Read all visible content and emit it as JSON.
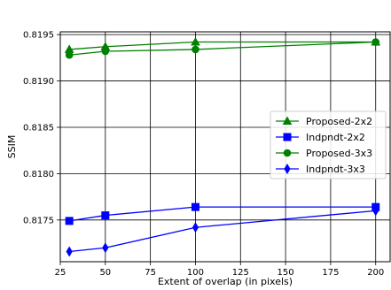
{
  "chart_data": {
    "type": "line",
    "title": "",
    "xlabel": "Extent of overlap (in pixels)",
    "ylabel": "SSIM",
    "xlim": [
      25,
      208
    ],
    "ylim": [
      0.81705,
      0.81953
    ],
    "xticks": [
      25,
      50,
      75,
      100,
      125,
      150,
      175,
      200
    ],
    "yticks": [
      0.8175,
      0.818,
      0.8185,
      0.819,
      0.8195
    ],
    "ytick_labels": [
      "0.8175",
      "0.8180",
      "0.8185",
      "0.8190",
      "0.8195"
    ],
    "grid": true,
    "legend_position": "center-right",
    "series": [
      {
        "name": "Proposed-2x2",
        "color": "#008000",
        "marker": "triangle",
        "x": [
          30,
          50,
          100,
          200
        ],
        "y": [
          0.81934,
          0.81937,
          0.81942,
          0.81942
        ]
      },
      {
        "name": "Indpndt-2x2",
        "color": "#0000ff",
        "marker": "square",
        "x": [
          30,
          50,
          100,
          200
        ],
        "y": [
          0.81749,
          0.81755,
          0.81764,
          0.81764
        ]
      },
      {
        "name": "Proposed-3x3",
        "color": "#008000",
        "marker": "circle",
        "x": [
          30,
          50,
          100,
          200
        ],
        "y": [
          0.81928,
          0.81932,
          0.81934,
          0.81942
        ]
      },
      {
        "name": "Indpndt-3x3",
        "color": "#0000ff",
        "marker": "diamond",
        "x": [
          30,
          50,
          100,
          200
        ],
        "y": [
          0.81716,
          0.8172,
          0.81742,
          0.8176
        ]
      }
    ]
  }
}
